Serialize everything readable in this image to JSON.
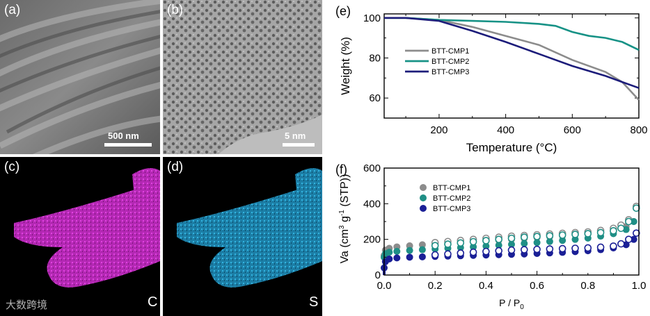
{
  "panels": {
    "a": {
      "label": "(a)",
      "scale_bar": "500 nm"
    },
    "b": {
      "label": "(b)",
      "scale_bar": "5 nm"
    },
    "c": {
      "label": "(c)",
      "element": "C",
      "watermark": "大数跨境"
    },
    "d": {
      "label": "(d)",
      "element": "S"
    }
  },
  "chart_data": [
    {
      "panel_label": "(e)",
      "type": "line",
      "xlabel": "Temperature (°C)",
      "ylabel": "Weight (%)",
      "xlim": [
        35,
        800
      ],
      "ylim": [
        50,
        102
      ],
      "xticks": [
        200,
        400,
        600,
        800
      ],
      "yticks": [
        60,
        70,
        80,
        90,
        100
      ],
      "ytick_labels": [
        60,
        80,
        100
      ],
      "legend_position": "center-left",
      "series": [
        {
          "name": "BTT-CMP1",
          "color": "#8c8c8c",
          "points": [
            [
              35,
              100
            ],
            [
              100,
              100
            ],
            [
              200,
              99
            ],
            [
              300,
              95.5
            ],
            [
              400,
              91
            ],
            [
              500,
              86.5
            ],
            [
              600,
              79
            ],
            [
              700,
              73
            ],
            [
              750,
              68
            ],
            [
              800,
              59
            ]
          ]
        },
        {
          "name": "BTT-CMP2",
          "color": "#179286",
          "points": [
            [
              35,
              100
            ],
            [
              100,
              100
            ],
            [
              200,
              99
            ],
            [
              300,
              98.5
            ],
            [
              400,
              98
            ],
            [
              500,
              97
            ],
            [
              550,
              96
            ],
            [
              600,
              93
            ],
            [
              650,
              91
            ],
            [
              700,
              90
            ],
            [
              750,
              88
            ],
            [
              800,
              84
            ]
          ]
        },
        {
          "name": "BTT-CMP3",
          "color": "#1c1c7a",
          "points": [
            [
              35,
              100
            ],
            [
              100,
              100
            ],
            [
              200,
              98.5
            ],
            [
              300,
              93.5
            ],
            [
              400,
              88
            ],
            [
              500,
              82
            ],
            [
              600,
              76
            ],
            [
              700,
              71
            ],
            [
              750,
              68
            ],
            [
              800,
              65
            ]
          ]
        }
      ]
    },
    {
      "panel_label": "(f)",
      "type": "scatter",
      "xlabel": "P / P0",
      "ylabel": "Va (cm3 g-1 (STP))",
      "xlim": [
        0,
        1.0
      ],
      "ylim": [
        0,
        600
      ],
      "xticks": [
        0.0,
        0.2,
        0.4,
        0.6,
        0.8,
        1.0
      ],
      "yticks": [
        0,
        200,
        400,
        600
      ],
      "legend_position": "upper-left",
      "notes": "filled = adsorption, open = desorption",
      "series": [
        {
          "name": "BTT-CMP1",
          "color": "#8c8c8c",
          "adsorption": [
            [
              0.0,
              110
            ],
            [
              0.005,
              140
            ],
            [
              0.02,
              150
            ],
            [
              0.05,
              158
            ],
            [
              0.1,
              164
            ],
            [
              0.15,
              170
            ],
            [
              0.2,
              174
            ],
            [
              0.25,
              178
            ],
            [
              0.3,
              182
            ],
            [
              0.35,
              186
            ],
            [
              0.4,
              190
            ],
            [
              0.45,
              195
            ],
            [
              0.5,
              200
            ],
            [
              0.55,
              205
            ],
            [
              0.6,
              210
            ],
            [
              0.65,
              215
            ],
            [
              0.7,
              220
            ],
            [
              0.75,
              226
            ],
            [
              0.8,
              233
            ],
            [
              0.85,
              242
            ],
            [
              0.9,
              255
            ],
            [
              0.95,
              272
            ],
            [
              0.98,
              300
            ],
            [
              0.99,
              385
            ]
          ],
          "desorption": [
            [
              0.99,
              385
            ],
            [
              0.96,
              310
            ],
            [
              0.93,
              280
            ],
            [
              0.9,
              262
            ],
            [
              0.85,
              250
            ],
            [
              0.8,
              242
            ],
            [
              0.75,
              238
            ],
            [
              0.7,
              234
            ],
            [
              0.65,
              230
            ],
            [
              0.6,
              226
            ],
            [
              0.55,
              222
            ],
            [
              0.5,
              218
            ],
            [
              0.45,
              212
            ],
            [
              0.4,
              206
            ],
            [
              0.35,
              200
            ],
            [
              0.3,
              194
            ],
            [
              0.25,
              188
            ],
            [
              0.2,
              182
            ]
          ]
        },
        {
          "name": "BTT-CMP2",
          "color": "#1f8f86",
          "adsorption": [
            [
              0.0,
              100
            ],
            [
              0.005,
              120
            ],
            [
              0.02,
              128
            ],
            [
              0.05,
              133
            ],
            [
              0.1,
              138
            ],
            [
              0.15,
              142
            ],
            [
              0.2,
              146
            ],
            [
              0.25,
              150
            ],
            [
              0.3,
              154
            ],
            [
              0.35,
              158
            ],
            [
              0.4,
              162
            ],
            [
              0.45,
              167
            ],
            [
              0.5,
              172
            ],
            [
              0.55,
              177
            ],
            [
              0.6,
              182
            ],
            [
              0.65,
              188
            ],
            [
              0.7,
              194
            ],
            [
              0.75,
              200
            ],
            [
              0.8,
              207
            ],
            [
              0.85,
              218
            ],
            [
              0.9,
              232
            ],
            [
              0.95,
              255
            ],
            [
              0.98,
              300
            ],
            [
              0.99,
              375
            ]
          ],
          "desorption": [
            [
              0.99,
              375
            ],
            [
              0.96,
              300
            ],
            [
              0.93,
              262
            ],
            [
              0.9,
              248
            ],
            [
              0.85,
              238
            ],
            [
              0.8,
              232
            ],
            [
              0.75,
              228
            ],
            [
              0.7,
              224
            ],
            [
              0.65,
              220
            ],
            [
              0.6,
              216
            ],
            [
              0.55,
              212
            ],
            [
              0.5,
              206
            ],
            [
              0.45,
              200
            ],
            [
              0.4,
              193
            ],
            [
              0.35,
              187
            ],
            [
              0.3,
              180
            ],
            [
              0.25,
              173
            ],
            [
              0.2,
              165
            ]
          ]
        },
        {
          "name": "BTT-CMP3",
          "color": "#1a1f96",
          "adsorption": [
            [
              0.0,
              40
            ],
            [
              0.005,
              75
            ],
            [
              0.02,
              90
            ],
            [
              0.05,
              96
            ],
            [
              0.1,
              100
            ],
            [
              0.15,
              102
            ],
            [
              0.2,
              104
            ],
            [
              0.25,
              106
            ],
            [
              0.3,
              108
            ],
            [
              0.35,
              110
            ],
            [
              0.4,
              112
            ],
            [
              0.45,
              114
            ],
            [
              0.5,
              116
            ],
            [
              0.55,
              118
            ],
            [
              0.6,
              121
            ],
            [
              0.65,
              124
            ],
            [
              0.7,
              127
            ],
            [
              0.75,
              131
            ],
            [
              0.8,
              136
            ],
            [
              0.85,
              142
            ],
            [
              0.9,
              152
            ],
            [
              0.95,
              170
            ],
            [
              0.98,
              200
            ],
            [
              0.99,
              235
            ]
          ],
          "desorption": [
            [
              0.99,
              235
            ],
            [
              0.96,
              200
            ],
            [
              0.93,
              175
            ],
            [
              0.9,
              162
            ],
            [
              0.85,
              156
            ],
            [
              0.8,
              152
            ],
            [
              0.75,
              150
            ],
            [
              0.7,
              148
            ],
            [
              0.65,
              146
            ],
            [
              0.6,
              144
            ],
            [
              0.55,
              142
            ],
            [
              0.5,
              140
            ],
            [
              0.45,
              136
            ],
            [
              0.4,
              132
            ],
            [
              0.35,
              128
            ],
            [
              0.3,
              123
            ],
            [
              0.25,
              118
            ],
            [
              0.2,
              113
            ]
          ]
        }
      ]
    }
  ]
}
